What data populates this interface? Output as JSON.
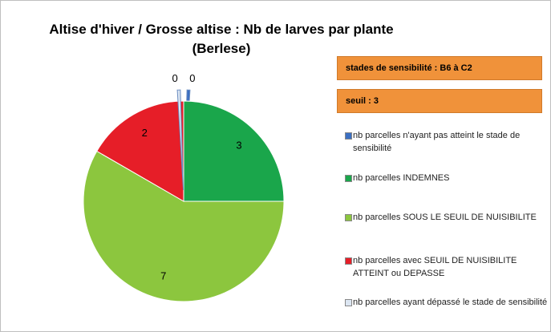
{
  "chart_data": {
    "type": "pie",
    "title": [
      "Altise d'hiver / Grosse altise : Nb de larves par plante",
      "(Berlese)"
    ],
    "annotations": [
      "stades de sensibilité : B6 à C2",
      "seuil : 3"
    ],
    "categories": [
      "nb parcelles n'ayant pas atteint le stade de sensibilité",
      "nb parcelles INDEMNES",
      "nb parcelles SOUS LE SEUIL DE NUISIBILITE",
      "nb parcelles avec SEUIL DE NUISIBILITE ATTEINT ou DEPASSE",
      "nb parcelles ayant dépassé le stade de sensibilité"
    ],
    "values": [
      0,
      3,
      7,
      2,
      0
    ],
    "colors": [
      "#3b6fc2",
      "#1aa64b",
      "#8cc63e",
      "#e61e28",
      "#dce6f2"
    ]
  }
}
